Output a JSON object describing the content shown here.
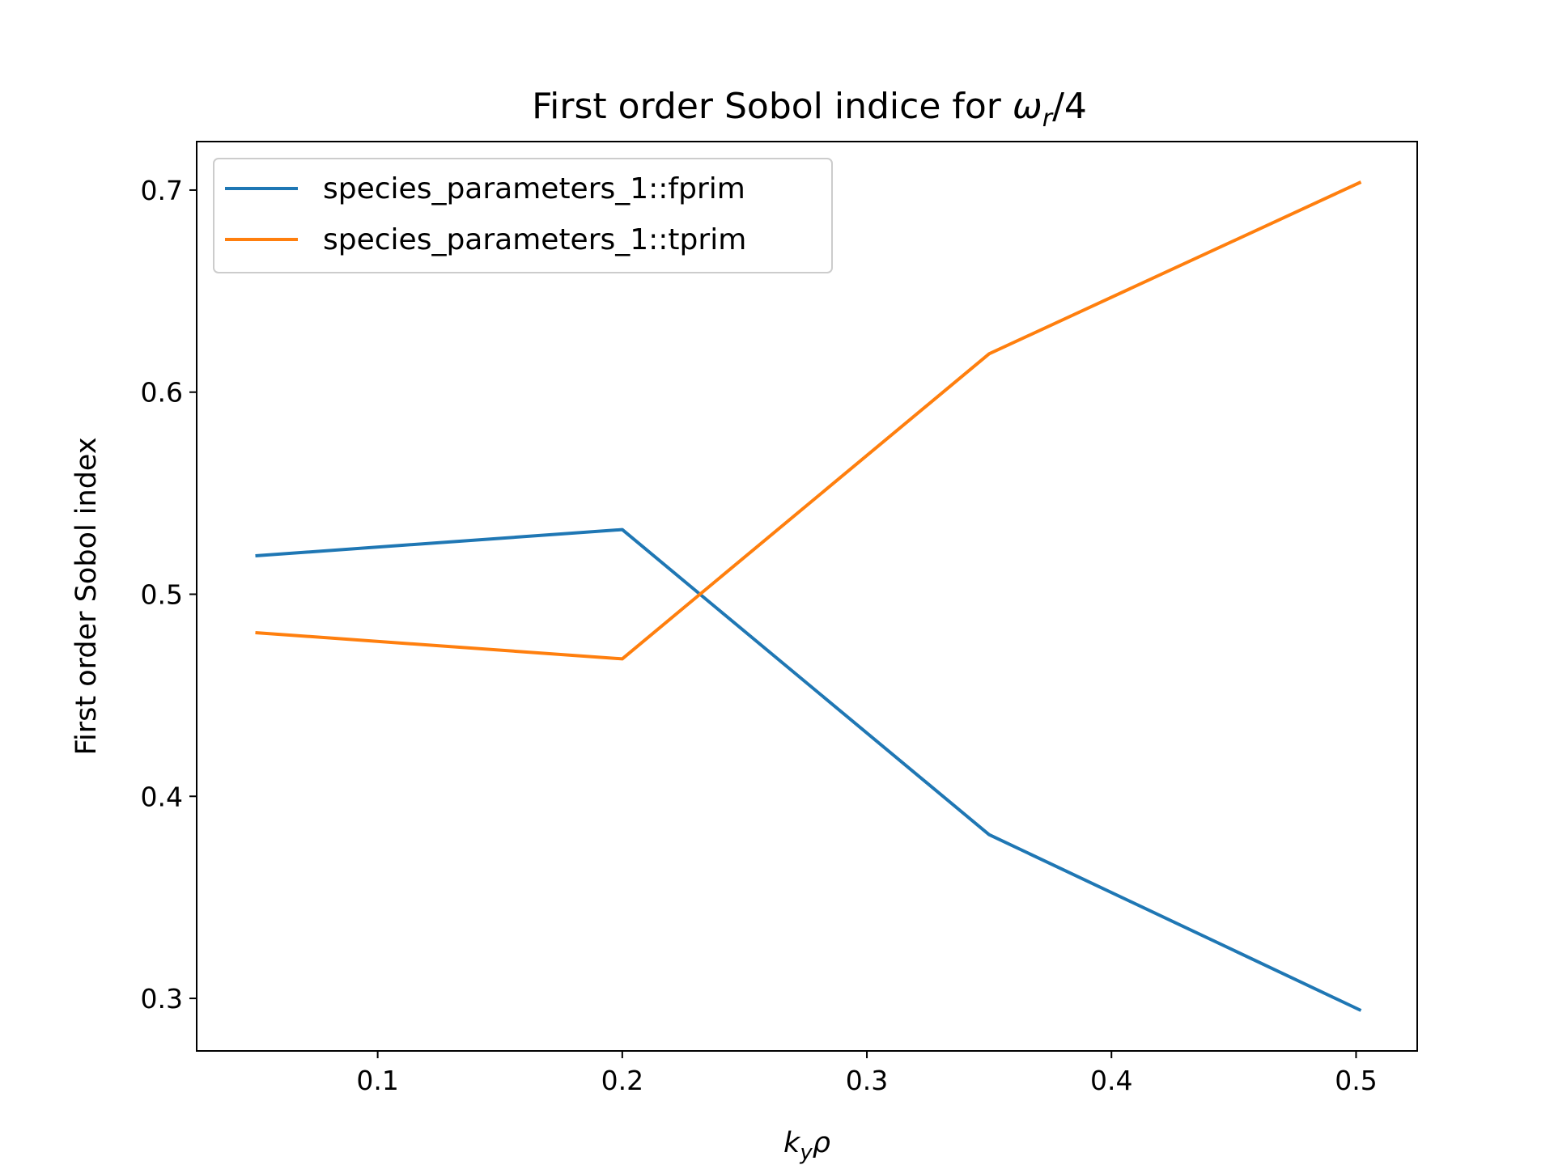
{
  "chart_data": {
    "type": "line",
    "title_main": "First order Sobol indice for ",
    "title_symbol": "ω",
    "title_subscript": "r",
    "title_suffix": "/4",
    "xlabel_main": "k",
    "xlabel_subscript": "y",
    "xlabel_suffix": "ρ",
    "ylabel": "First order Sobol index",
    "xlim": [
      0.026,
      0.525
    ],
    "ylim": [
      0.274,
      0.724
    ],
    "xticks": [
      0.1,
      0.2,
      0.3,
      0.4,
      0.5
    ],
    "xtick_labels": [
      "0.1",
      "0.2",
      "0.3",
      "0.4",
      "0.5"
    ],
    "yticks": [
      0.3,
      0.4,
      0.5,
      0.6,
      0.7
    ],
    "ytick_labels": [
      "0.3",
      "0.4",
      "0.5",
      "0.6",
      "0.7"
    ],
    "grid": false,
    "legend_position": "upper-left",
    "x": [
      0.05,
      0.2,
      0.35,
      0.502
    ],
    "series": [
      {
        "name": "species_parameters_1::fprim",
        "color": "#1f77b4",
        "values": [
          0.519,
          0.532,
          0.381,
          0.294
        ]
      },
      {
        "name": "species_parameters_1::tprim",
        "color": "#ff7f0e",
        "values": [
          0.481,
          0.468,
          0.619,
          0.704
        ]
      }
    ]
  }
}
